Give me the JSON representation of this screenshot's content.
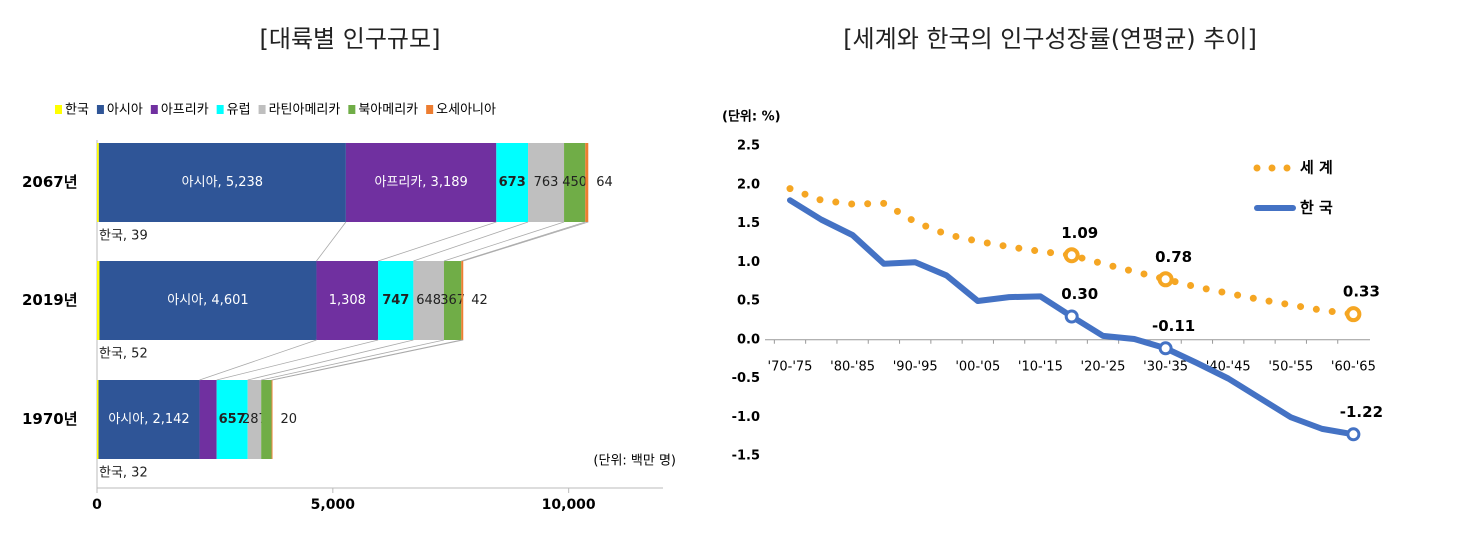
{
  "chart_data": [
    {
      "type": "stacked-bar-horizontal",
      "title": "[대륙별 인구규모]",
      "unit_note": "(단위: 백만 명)",
      "categories": [
        "2067년",
        "2019년",
        "1970년"
      ],
      "series": [
        {
          "name": "한국",
          "color": "#ffff00",
          "values": [
            39,
            52,
            32
          ],
          "value_labels": [
            "한국, 39",
            "한국, 52",
            "한국, 32"
          ]
        },
        {
          "name": "아시아",
          "color": "#2f5597",
          "values": [
            5238,
            4601,
            2142
          ],
          "value_labels": [
            "아시아, 5,238",
            "아시아, 4,601",
            "아시아, 2,142"
          ]
        },
        {
          "name": "아프리카",
          "color": "#7030a0",
          "values": [
            3189,
            1308,
            363
          ],
          "value_labels": [
            "아프리카, 3,189",
            "1,308",
            null
          ]
        },
        {
          "name": "유럽",
          "color": "#00ffff",
          "values": [
            673,
            747,
            657
          ]
        },
        {
          "name": "라틴아메리카",
          "color": "#bfbfbf",
          "values": [
            763,
            648,
            287
          ]
        },
        {
          "name": "북아메리카",
          "color": "#70ad47",
          "values": [
            450,
            367,
            220
          ],
          "value_labels": [
            "450",
            "367",
            null
          ]
        },
        {
          "name": "오세아니아",
          "color": "#ed7d31",
          "values": [
            64,
            42,
            20
          ]
        }
      ],
      "xlim": [
        0,
        12000
      ],
      "xticks": [
        0,
        {
          "value": 5000,
          "label": "5,000"
        },
        {
          "value": 10000,
          "label": "10,000"
        }
      ],
      "legend": "top"
    },
    {
      "type": "line",
      "title": "[세계와 한국의 인구성장률(연평균) 추이]",
      "unit_note": "(단위: %)",
      "categories": [
        "'70-'75",
        null,
        "'80-'85",
        null,
        "'90-'95",
        null,
        "'00-'05",
        null,
        "'10-'15",
        null,
        "'20-'25",
        null,
        "'30-'35",
        null,
        "'40-'45",
        null,
        "'50-'55",
        null,
        "'60-'65"
      ],
      "series": [
        {
          "name": "세 계",
          "color": "#f5a623",
          "style": "dotted",
          "values": [
            1.95,
            1.8,
            1.75,
            1.76,
            1.52,
            1.36,
            1.27,
            1.2,
            1.14,
            1.09,
            0.98,
            0.88,
            0.78,
            0.68,
            0.6,
            0.52,
            0.45,
            0.38,
            0.33
          ],
          "value_labels": [
            null,
            null,
            null,
            null,
            null,
            null,
            null,
            null,
            null,
            "1.09",
            null,
            null,
            "0.78",
            null,
            null,
            null,
            null,
            null,
            "0.33"
          ]
        },
        {
          "name": "한 국",
          "color": "#4472c4",
          "style": "solid",
          "values": [
            1.8,
            1.55,
            1.35,
            0.98,
            1.0,
            0.83,
            0.5,
            0.55,
            0.56,
            0.3,
            0.05,
            0.01,
            -0.11,
            -0.3,
            -0.5,
            -0.75,
            -1.0,
            -1.15,
            -1.22
          ],
          "value_labels": [
            null,
            null,
            null,
            null,
            null,
            null,
            null,
            null,
            null,
            "0.30",
            null,
            null,
            "-0.11",
            null,
            null,
            null,
            null,
            null,
            "-1.22"
          ]
        }
      ],
      "ylim": [
        -1.5,
        2.5
      ],
      "yticks": [
        2.5,
        {
          "value": 2,
          "label": "2.0"
        },
        1.5,
        {
          "value": 1,
          "label": "1.0"
        },
        0.5,
        {
          "value": 0,
          "label": "0.0"
        },
        -0.5,
        {
          "value": -1,
          "label": "-1.0"
        },
        -1.5
      ],
      "legend": "upper right"
    }
  ]
}
